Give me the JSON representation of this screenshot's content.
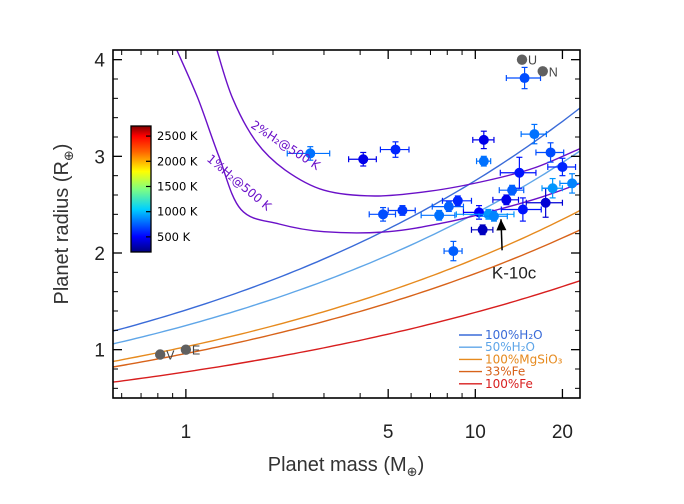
{
  "chart_data": {
    "type": "scatter",
    "xlabel_main": "Planet mass (M",
    "xlabel_sub": "⊕",
    "xlabel_end": ")",
    "ylabel_main": "Planet radius (R",
    "ylabel_sub": "⊕",
    "ylabel_end": ")",
    "x_scale": "log",
    "xlim": [
      0.56,
      23
    ],
    "ylim": [
      0.5,
      4.1
    ],
    "x_ticks": [
      {
        "value": 1,
        "label": "1"
      },
      {
        "value": 5,
        "label": "5"
      },
      {
        "value": 10,
        "label": "10"
      },
      {
        "value": 20,
        "label": "20"
      }
    ],
    "y_ticks": [
      {
        "value": 1,
        "label": "1"
      },
      {
        "value": 2,
        "label": "2"
      },
      {
        "value": 3,
        "label": "3"
      },
      {
        "value": 4,
        "label": "4"
      }
    ],
    "colorbar": {
      "labels": [
        "2500 K",
        "2000 K",
        "1500 K",
        "1000 K",
        "500 K"
      ],
      "values": [
        2500,
        2000,
        1500,
        1000,
        500
      ],
      "range": [
        200,
        2700
      ]
    },
    "solar_system": [
      {
        "name": "V",
        "mass": 0.815,
        "radius": 0.95
      },
      {
        "name": "E",
        "mass": 1.0,
        "radius": 1.0
      },
      {
        "name": "U",
        "mass": 14.5,
        "radius": 4.0
      },
      {
        "name": "N",
        "mass": 17.1,
        "radius": 3.88
      }
    ],
    "planets": [
      {
        "mass": 2.69,
        "radius": 3.03,
        "mass_err": 0.45,
        "radius_err": 0.07,
        "teq": 800
      },
      {
        "mass": 4.1,
        "radius": 2.97,
        "mass_err": 0.45,
        "radius_err": 0.07,
        "teq": 450
      },
      {
        "mass": 5.3,
        "radius": 3.07,
        "mass_err": 0.6,
        "radius_err": 0.08,
        "teq": 600
      },
      {
        "mass": 4.8,
        "radius": 2.4,
        "mass_err": 0.5,
        "radius_err": 0.07,
        "teq": 700
      },
      {
        "mass": 5.6,
        "radius": 2.44,
        "mass_err": 0.6,
        "radius_err": 0.05,
        "teq": 650
      },
      {
        "mass": 7.5,
        "radius": 2.39,
        "mass_err": 1.0,
        "radius_err": 0.05,
        "teq": 800
      },
      {
        "mass": 8.1,
        "radius": 2.48,
        "mass_err": 1.0,
        "radius_err": 0.05,
        "teq": 750
      },
      {
        "mass": 8.7,
        "radius": 2.54,
        "mass_err": 1.0,
        "radius_err": 0.05,
        "teq": 600
      },
      {
        "mass": 8.4,
        "radius": 2.02,
        "mass_err": 0.6,
        "radius_err": 0.1,
        "teq": 750
      },
      {
        "mass": 10.3,
        "radius": 2.42,
        "mass_err": 1.2,
        "radius_err": 0.07,
        "teq": 500
      },
      {
        "mass": 10.6,
        "radius": 2.24,
        "mass_err": 0.9,
        "radius_err": 0.05,
        "teq": 350
      },
      {
        "mass": 10.7,
        "radius": 3.17,
        "mass_err": 0.9,
        "radius_err": 0.09,
        "teq": 450
      },
      {
        "mass": 10.7,
        "radius": 2.95,
        "mass_err": 0.6,
        "radius_err": 0.05,
        "teq": 800
      },
      {
        "mass": 11.1,
        "radius": 2.4,
        "mass_err": 2.5,
        "radius_err": 0.05,
        "teq": 900
      },
      {
        "mass": 11.6,
        "radius": 2.38,
        "mass_err": 1.3,
        "radius_err": 0.05,
        "teq": 850
      },
      {
        "mass": 12.8,
        "radius": 2.55,
        "mass_err": 1.3,
        "radius_err": 0.05,
        "teq": 450
      },
      {
        "mass": 13.4,
        "radius": 2.65,
        "mass_err": 1.3,
        "radius_err": 0.05,
        "teq": 750
      },
      {
        "mass": 14.2,
        "radius": 2.83,
        "mass_err": 2.0,
        "radius_err": 0.16,
        "teq": 550
      },
      {
        "mass": 14.6,
        "radius": 2.45,
        "mass_err": 2.3,
        "radius_err": 0.12,
        "teq": 550
      },
      {
        "mass": 14.8,
        "radius": 3.81,
        "mass_err": 2.0,
        "radius_err": 0.11,
        "teq": 700
      },
      {
        "mass": 16.0,
        "radius": 3.23,
        "mass_err": 1.6,
        "radius_err": 0.1,
        "teq": 800
      },
      {
        "mass": 17.5,
        "radius": 2.52,
        "mass_err": 2.5,
        "radius_err": 0.15,
        "teq": 400
      },
      {
        "mass": 18.2,
        "radius": 3.04,
        "mass_err": 2.0,
        "radius_err": 0.1,
        "teq": 700
      },
      {
        "mass": 18.5,
        "radius": 2.67,
        "mass_err": 1.5,
        "radius_err": 0.1,
        "teq": 900
      },
      {
        "mass": 20.0,
        "radius": 2.89,
        "mass_err": 2.2,
        "radius_err": 0.09,
        "teq": 600
      },
      {
        "mass": 21.6,
        "radius": 2.72,
        "mass_err": 2.0,
        "radius_err": 0.1,
        "teq": 850
      }
    ],
    "annotation": {
      "text": "K-10c",
      "target_mass": 11.6,
      "target_radius": 2.38,
      "text_mass": 13.4,
      "text_radius": 1.8
    },
    "composition_curves": [
      {
        "name": "100%H₂O",
        "color": "#3a6bd8",
        "coef": 1.41,
        "exp": 0.29
      },
      {
        "name": "50%H₂O",
        "color": "#5fa6e8",
        "coef": 1.25,
        "exp": 0.285
      },
      {
        "name": "100%MgSiO₃",
        "color": "#e68a1e",
        "coef": 1.03,
        "exp": 0.275
      },
      {
        "name": "33%Fe",
        "color": "#d8631a",
        "coef": 0.96,
        "exp": 0.27
      },
      {
        "name": "100%Fe",
        "color": "#d81e1e",
        "coef": 0.77,
        "exp": 0.255
      }
    ],
    "envelope_curves": [
      {
        "name": "2%H₂@500 K",
        "color": "#6a10c8",
        "mass": [
          1.28,
          1.45,
          1.75,
          2.2,
          3.0,
          4.5,
          7.0,
          11.0,
          16.0,
          23.0
        ],
        "radius": [
          4.1,
          3.6,
          3.15,
          2.86,
          2.65,
          2.59,
          2.64,
          2.75,
          2.88,
          3.08
        ]
      },
      {
        "name": "1%H₂@500 K",
        "color": "#6a10c8",
        "mass": [
          0.93,
          1.1,
          1.3,
          1.55,
          2.1,
          3.0,
          5.0,
          8.0,
          12.0,
          17.0,
          23.0
        ],
        "radius": [
          4.1,
          3.6,
          3.0,
          2.45,
          2.3,
          2.22,
          2.22,
          2.32,
          2.45,
          2.58,
          2.72
        ]
      }
    ]
  }
}
